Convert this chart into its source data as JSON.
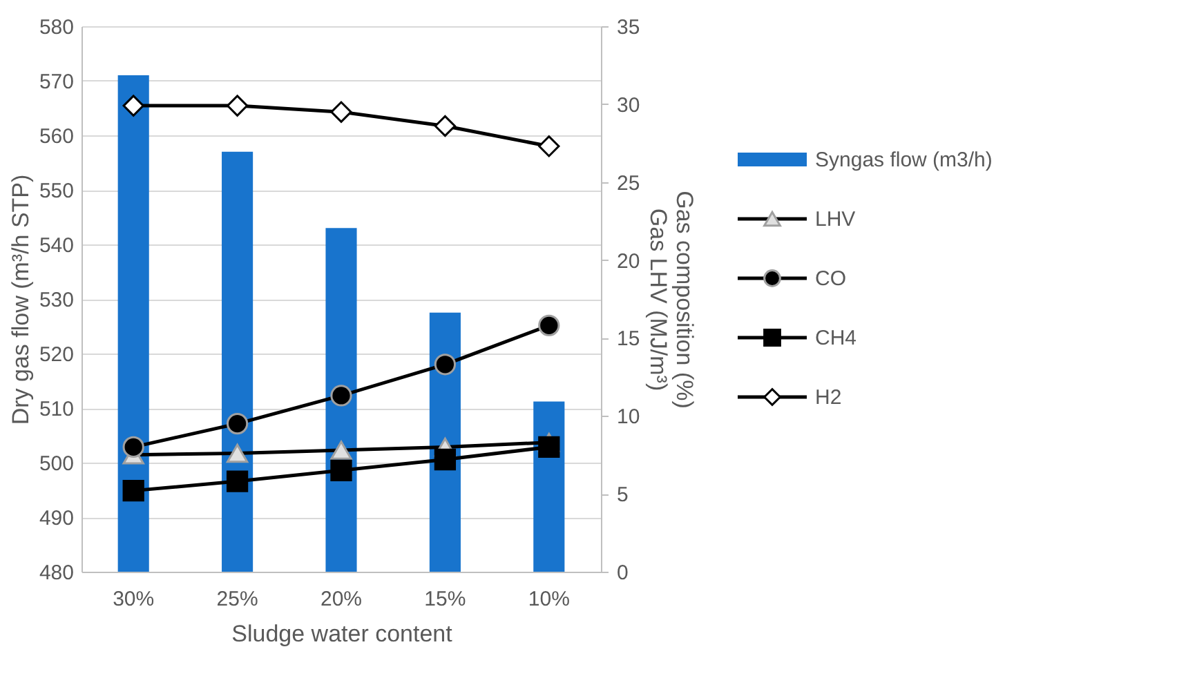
{
  "chart_data": {
    "type": "bar",
    "xlabel": "Sludge water content",
    "ylabel": "Dry gas flow (m³/h STP)",
    "y2label": "Gas composition (%)\nGas LHV (MJ/m³)",
    "categories": [
      "30%",
      "25%",
      "20%",
      "15%",
      "10%"
    ],
    "series": [
      {
        "name": "Syngas flow (m3/h)",
        "color": "#1874cd",
        "values": [
          571,
          557,
          543,
          527.5,
          511.2
        ]
      },
      {
        "name": "LHV",
        "type": "line",
        "axis": "y2",
        "color": "#000000",
        "marker": "triangle",
        "values": [
          7.5,
          7.6,
          7.8,
          8.0,
          8.3
        ]
      },
      {
        "name": "CO",
        "type": "line",
        "axis": "y2",
        "color": "#000000",
        "marker": "circle",
        "values": [
          8.0,
          9.5,
          11.3,
          13.3,
          15.8
        ]
      },
      {
        "name": "CH4",
        "type": "line",
        "axis": "y2",
        "color": "#000000",
        "marker": "square",
        "values": [
          5.2,
          5.8,
          6.5,
          7.2,
          8.0
        ]
      },
      {
        "name": "H2",
        "type": "line",
        "axis": "y2",
        "color": "#000000",
        "marker": "diamond",
        "values": [
          29.9,
          29.9,
          29.5,
          28.6,
          27.3
        ]
      }
    ],
    "ylim": [
      480,
      580
    ],
    "yticks": [
      480,
      490,
      500,
      510,
      520,
      530,
      540,
      550,
      560,
      570,
      580
    ],
    "y2lim": [
      0,
      35
    ],
    "y2ticks": [
      0,
      5,
      10,
      15,
      20,
      25,
      30,
      35
    ],
    "grid": "y",
    "legend": "right"
  }
}
